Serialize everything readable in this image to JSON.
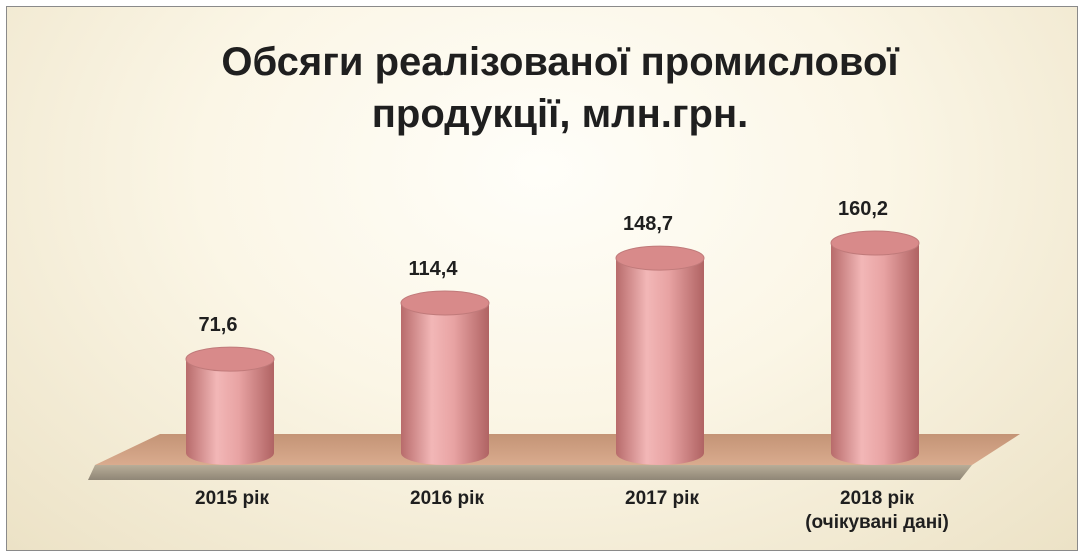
{
  "chart_data": {
    "type": "bar",
    "style": "3d-cylinder",
    "title": [
      "Обсяги реалізованої промислової",
      "продукції, млн.грн."
    ],
    "categories": [
      [
        "2015 рік"
      ],
      [
        "2016 рік"
      ],
      [
        "2017 рік"
      ],
      [
        "2018 рік",
        "(очікувані дані)"
      ]
    ],
    "values": [
      71.6,
      114.4,
      148.7,
      160.2
    ],
    "data_labels": [
      "71,6",
      "114,4",
      "148,7",
      "160,2"
    ],
    "xlabel": "",
    "ylabel": "",
    "ylim": [
      0,
      160.2
    ],
    "grid": false,
    "legend": "none",
    "colors": {
      "bar": "#e8a3a3",
      "bar_dark": "#b86b6b",
      "bar_top": "#d88a8a",
      "floor_back": "#c9987c",
      "floor_front": "#a49a86",
      "text": "#1f1f1f"
    }
  }
}
